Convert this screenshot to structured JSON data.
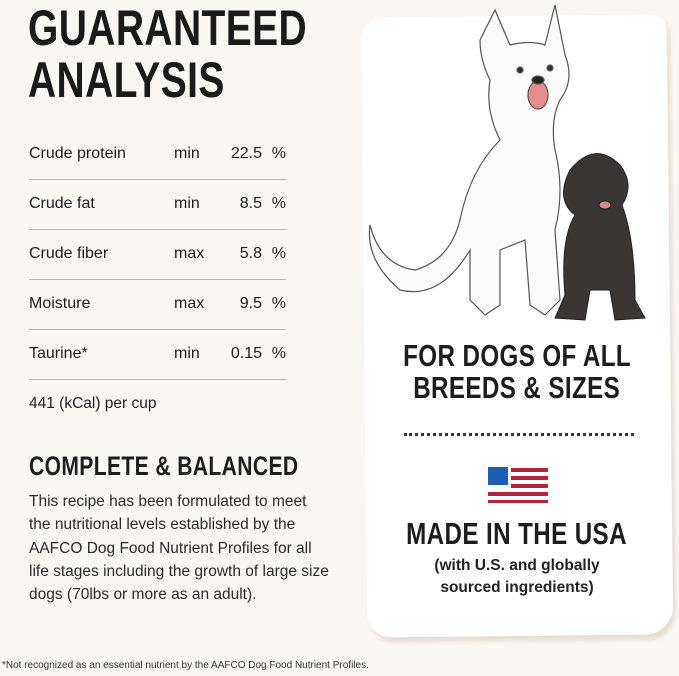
{
  "title": [
    "GUARANTEED",
    "ANALYSIS"
  ],
  "analysis": [
    {
      "nutrient": "Crude protein",
      "qualifier": "min",
      "value": "22.5",
      "unit": "%"
    },
    {
      "nutrient": "Crude fat",
      "qualifier": "min",
      "value": "8.5",
      "unit": "%"
    },
    {
      "nutrient": "Crude fiber",
      "qualifier": "max",
      "value": "5.8",
      "unit": "%"
    },
    {
      "nutrient": "Moisture",
      "qualifier": "max",
      "value": "9.5",
      "unit": "%"
    },
    {
      "nutrient": "Taurine*",
      "qualifier": "min",
      "value": "0.15",
      "unit": "%"
    }
  ],
  "calories": "441 (kCal) per cup",
  "complete": {
    "heading": "COMPLETE & BALANCED",
    "text": "This recipe has been formulated to meet the nutritional levels established by the AAFCO Dog Food Nutrient Profiles for all life stages including the growth of large size dogs (70lbs or more as an adult)."
  },
  "footnote": "*Not recognized as an essential nutrient by the AAFCO Dog Food Nutrient Profiles.",
  "card": {
    "for_dogs": [
      "FOR DOGS OF ALL",
      "BREEDS & SIZES"
    ],
    "made": "MADE IN THE USA",
    "sourced": [
      "(with U.S. and globally",
      "sourced ingredients)"
    ],
    "flag_colors": {
      "blue": "#1c5fb0",
      "red": "#b5253a"
    }
  }
}
